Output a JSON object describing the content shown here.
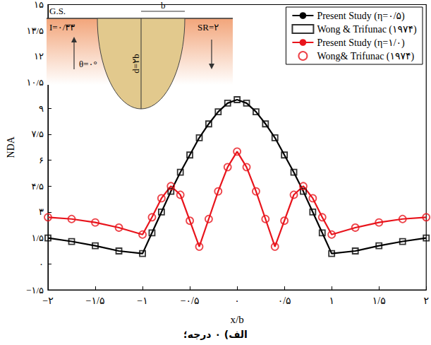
{
  "chart_data": {
    "type": "line",
    "x_label": "x/b",
    "y_label": "NDA",
    "caption": "الف) ۰ درجه؛",
    "xlim": [
      -2,
      2
    ],
    "xticks": [
      {
        "value": -2,
        "label": "−۲"
      },
      {
        "value": -1.5,
        "label": "−۱/۵"
      },
      {
        "value": -1,
        "label": "−۱"
      },
      {
        "value": -0.5,
        "label": "−۰/۵"
      },
      {
        "value": 0,
        "label": "۰"
      },
      {
        "value": 0.5,
        "label": "۰/۵"
      },
      {
        "value": 1,
        "label": "۱"
      },
      {
        "value": 1.5,
        "label": "۱/۵"
      },
      {
        "value": 2,
        "label": "۲"
      }
    ],
    "ylim": [
      -1.5,
      15
    ],
    "yticks": [
      {
        "value": -1.5,
        "label": "−۱/۵"
      },
      {
        "value": 0,
        "label": "۰"
      },
      {
        "value": 1.5,
        "label": "۱/۵"
      },
      {
        "value": 3,
        "label": "۳"
      },
      {
        "value": 4.5,
        "label": "۴/۵"
      },
      {
        "value": 6,
        "label": "۶"
      },
      {
        "value": 7.5,
        "label": "۷/۵"
      },
      {
        "value": 9,
        "label": "۹"
      },
      {
        "value": 10.5,
        "label": "۱۰/۵"
      },
      {
        "value": 12,
        "label": "۱۲"
      },
      {
        "value": 13.5,
        "label": "۱۳/۵"
      },
      {
        "value": 15,
        "label": "۱۵"
      }
    ],
    "grid": false,
    "legend": "upper right",
    "inset_labels": {
      "ground_surface": "G.S.",
      "half_width": "b",
      "incidence": "I=۰/۳۳",
      "stiffness_ratio": "SR=۲",
      "depth": "d=۲b",
      "angle": "θ=۰°"
    },
    "series": [
      {
        "name": "Present Study (η=۰/۵)",
        "type": "line",
        "color": "#000000",
        "marker": "none",
        "line_style": "solid",
        "x": [
          -2,
          -1.75,
          -1.5,
          -1.25,
          -1,
          -0.9,
          -0.8,
          -0.7,
          -0.6,
          -0.5,
          -0.4,
          -0.3,
          -0.2,
          -0.1,
          0,
          0.1,
          0.2,
          0.3,
          0.4,
          0.5,
          0.6,
          0.7,
          0.8,
          0.9,
          1,
          1.25,
          1.5,
          1.75,
          2
        ],
        "values": [
          1.5,
          1.3,
          1.05,
          0.75,
          0.6,
          1.8,
          3.0,
          4.2,
          5.3,
          6.3,
          7.3,
          8.1,
          8.8,
          9.3,
          9.5,
          9.3,
          8.8,
          8.1,
          7.3,
          6.3,
          5.3,
          4.2,
          3.0,
          1.8,
          0.6,
          0.75,
          1.05,
          1.3,
          1.5
        ]
      },
      {
        "name": "Wong & Trifunac (۱۹۷۴)",
        "type": "scatter",
        "color": "#000000",
        "marker": "square",
        "x": [
          -2,
          -1.75,
          -1.5,
          -1.25,
          -1,
          -0.9,
          -0.8,
          -0.7,
          -0.6,
          -0.5,
          -0.4,
          -0.3,
          -0.2,
          -0.1,
          0,
          0.1,
          0.2,
          0.3,
          0.4,
          0.5,
          0.6,
          0.7,
          0.8,
          0.9,
          1,
          1.25,
          1.5,
          1.75,
          2
        ],
        "values": [
          1.5,
          1.3,
          1.05,
          0.75,
          0.6,
          1.8,
          3.0,
          4.2,
          5.3,
          6.3,
          7.3,
          8.1,
          8.8,
          9.3,
          9.5,
          9.3,
          8.8,
          8.1,
          7.3,
          6.3,
          5.3,
          4.2,
          3.0,
          1.8,
          0.6,
          0.75,
          1.05,
          1.3,
          1.5
        ]
      },
      {
        "name": "Present Study (η=۱/۰)",
        "type": "line",
        "color": "#e8141c",
        "marker": "none",
        "line_style": "solid",
        "x": [
          -2,
          -1.75,
          -1.5,
          -1.25,
          -1,
          -0.9,
          -0.8,
          -0.7,
          -0.6,
          -0.5,
          -0.4,
          -0.3,
          -0.2,
          -0.1,
          0,
          0.1,
          0.2,
          0.3,
          0.4,
          0.5,
          0.6,
          0.7,
          0.8,
          0.9,
          1,
          1.25,
          1.5,
          1.75,
          2
        ],
        "values": [
          2.7,
          2.6,
          2.4,
          2.1,
          1.7,
          2.7,
          3.8,
          4.5,
          4.0,
          2.5,
          1.0,
          2.6,
          4.2,
          5.6,
          6.5,
          5.6,
          4.2,
          2.6,
          1.0,
          2.5,
          4.0,
          4.5,
          3.8,
          2.7,
          1.7,
          2.1,
          2.4,
          2.6,
          2.7
        ]
      },
      {
        "name": "Wong& Trifunac (۱۹۷۴)",
        "type": "scatter",
        "color": "#e8141c",
        "marker": "circle",
        "x": [
          -2,
          -1.75,
          -1.5,
          -1.25,
          -1,
          -0.9,
          -0.8,
          -0.7,
          -0.6,
          -0.5,
          -0.4,
          -0.3,
          -0.2,
          -0.1,
          0,
          0.1,
          0.2,
          0.3,
          0.4,
          0.5,
          0.6,
          0.7,
          0.8,
          0.9,
          1,
          1.25,
          1.5,
          1.75,
          2
        ],
        "values": [
          2.7,
          2.6,
          2.4,
          2.1,
          1.7,
          2.7,
          3.8,
          4.5,
          4.0,
          2.5,
          1.0,
          2.6,
          4.2,
          5.6,
          6.5,
          5.6,
          4.2,
          2.6,
          1.0,
          2.5,
          4.0,
          4.5,
          3.8,
          2.7,
          1.7,
          2.1,
          2.4,
          2.6,
          2.7
        ]
      }
    ]
  }
}
